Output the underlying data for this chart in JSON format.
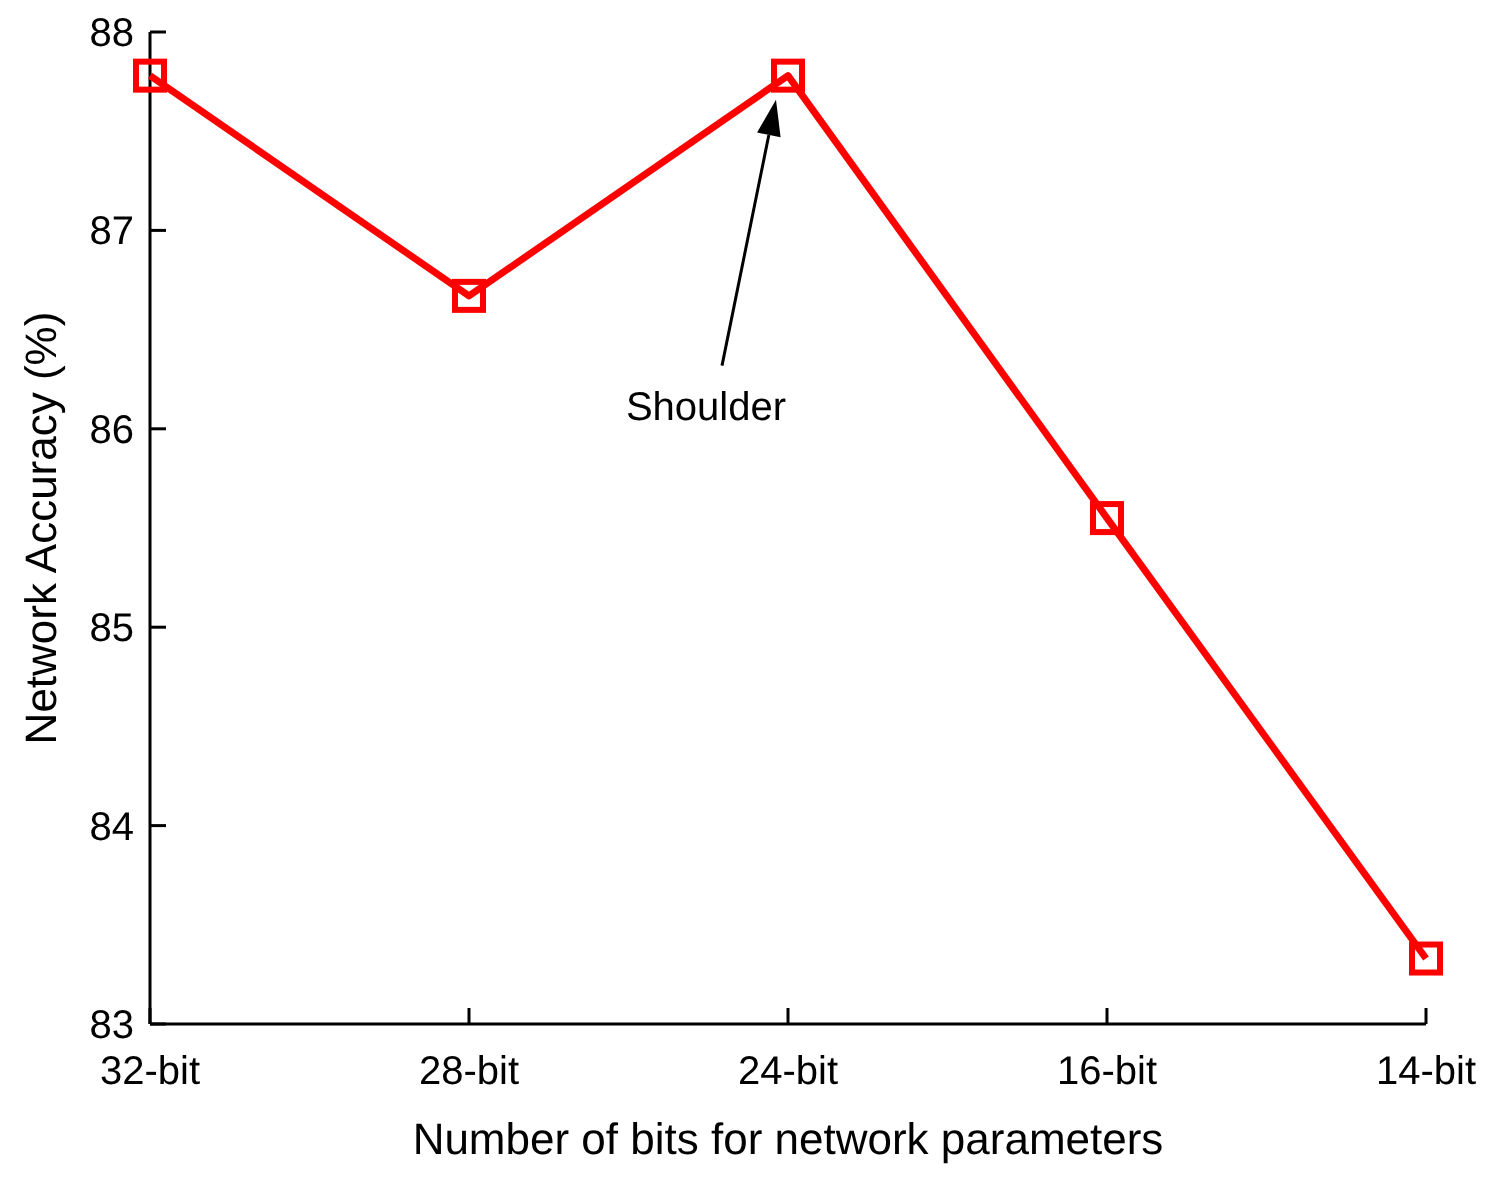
{
  "chart_data": {
    "type": "line",
    "xlabel": "Number of bits for network parameters",
    "ylabel": "Network Accuracy (%)",
    "categories": [
      "32-bit",
      "28-bit",
      "24-bit",
      "16-bit",
      "14-bit"
    ],
    "series": [
      {
        "color": "#ff0000",
        "values": [
          87.78,
          86.67,
          87.78,
          85.55,
          83.33
        ]
      }
    ],
    "ylim": [
      83,
      88
    ],
    "yticks": [
      83,
      84,
      85,
      86,
      87,
      88
    ],
    "marker": "square",
    "line_style": "solid",
    "grid": false,
    "annotations": [
      "Shoulder"
    ]
  }
}
